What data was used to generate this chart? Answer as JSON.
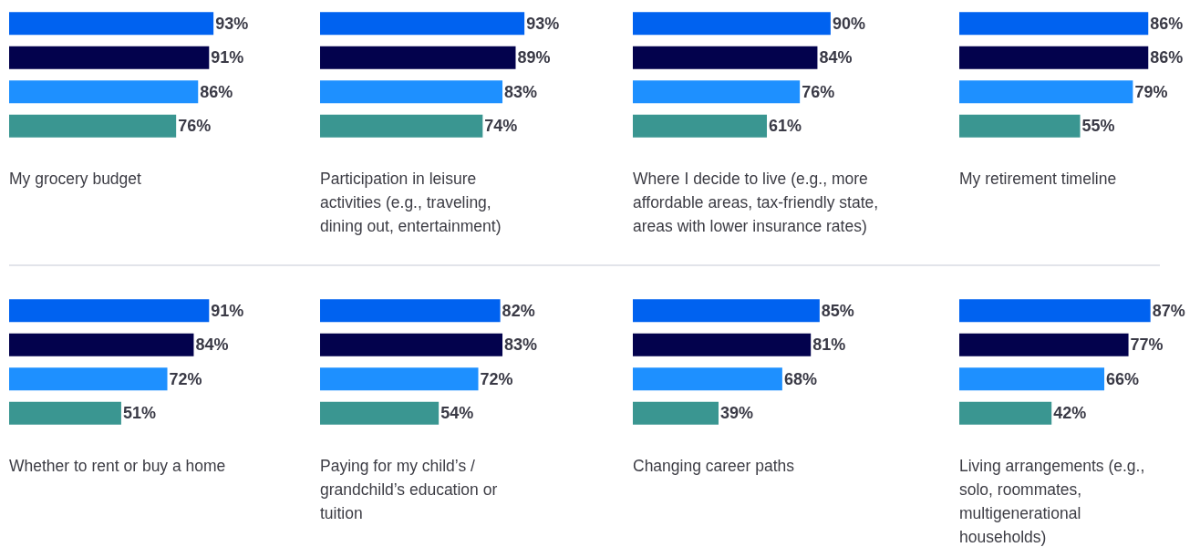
{
  "chart_data": [
    {
      "type": "bar",
      "orientation": "horizontal",
      "xlabel": "My grocery budget",
      "categories": [
        null,
        null,
        null,
        null
      ],
      "values": [
        93,
        91,
        86,
        76
      ],
      "value_labels": [
        "93%",
        "91%",
        "86%",
        "76%"
      ],
      "colors": [
        "#0062f0",
        "#03024d",
        "#1e90ff",
        "#3a9691"
      ]
    },
    {
      "type": "bar",
      "orientation": "horizontal",
      "xlabel": "Participation in leisure activities (e.g., traveling, dining out, entertainment)",
      "categories": [
        null,
        null,
        null,
        null
      ],
      "values": [
        93,
        89,
        83,
        74
      ],
      "value_labels": [
        "93%",
        "89%",
        "83%",
        "74%"
      ],
      "colors": [
        "#0062f0",
        "#03024d",
        "#1e90ff",
        "#3a9691"
      ]
    },
    {
      "type": "bar",
      "orientation": "horizontal",
      "xlabel": "Where I decide to live (e.g., more affordable areas, tax-friendly state, areas with lower insurance rates)",
      "categories": [
        null,
        null,
        null,
        null
      ],
      "values": [
        90,
        84,
        76,
        61
      ],
      "value_labels": [
        "90%",
        "84%",
        "76%",
        "61%"
      ],
      "colors": [
        "#0062f0",
        "#03024d",
        "#1e90ff",
        "#3a9691"
      ]
    },
    {
      "type": "bar",
      "orientation": "horizontal",
      "xlabel": "My retirement timeline",
      "categories": [
        null,
        null,
        null,
        null
      ],
      "values": [
        86,
        86,
        79,
        55
      ],
      "value_labels": [
        "86%",
        "86%",
        "79%",
        "55%"
      ],
      "colors": [
        "#0062f0",
        "#03024d",
        "#1e90ff",
        "#3a9691"
      ]
    },
    {
      "type": "bar",
      "orientation": "horizontal",
      "xlabel": "Whether to rent or buy a home",
      "categories": [
        null,
        null,
        null,
        null
      ],
      "values": [
        91,
        84,
        72,
        51
      ],
      "value_labels": [
        "91%",
        "84%",
        "72%",
        "51%"
      ],
      "colors": [
        "#0062f0",
        "#03024d",
        "#1e90ff",
        "#3a9691"
      ]
    },
    {
      "type": "bar",
      "orientation": "horizontal",
      "xlabel": "Paying for my child’s / grandchild’s education or tuition",
      "categories": [
        null,
        null,
        null,
        null
      ],
      "values": [
        82,
        83,
        72,
        54
      ],
      "value_labels": [
        "82%",
        "83%",
        "72%",
        "54%"
      ],
      "colors": [
        "#0062f0",
        "#03024d",
        "#1e90ff",
        "#3a9691"
      ]
    },
    {
      "type": "bar",
      "orientation": "horizontal",
      "xlabel": "Changing career paths",
      "categories": [
        null,
        null,
        null,
        null
      ],
      "values": [
        85,
        81,
        68,
        39
      ],
      "value_labels": [
        "85%",
        "81%",
        "68%",
        "39%"
      ],
      "colors": [
        "#0062f0",
        "#03024d",
        "#1e90ff",
        "#3a9691"
      ]
    },
    {
      "type": "bar",
      "orientation": "horizontal",
      "xlabel": "Living arrangements (e.g., solo, roommates, multigenerational households)",
      "categories": [
        null,
        null,
        null,
        null
      ],
      "values": [
        87,
        77,
        66,
        42
      ],
      "value_labels": [
        "87%",
        "77%",
        "66%",
        "42%"
      ],
      "colors": [
        "#0062f0",
        "#03024d",
        "#1e90ff",
        "#3a9691"
      ]
    }
  ]
}
